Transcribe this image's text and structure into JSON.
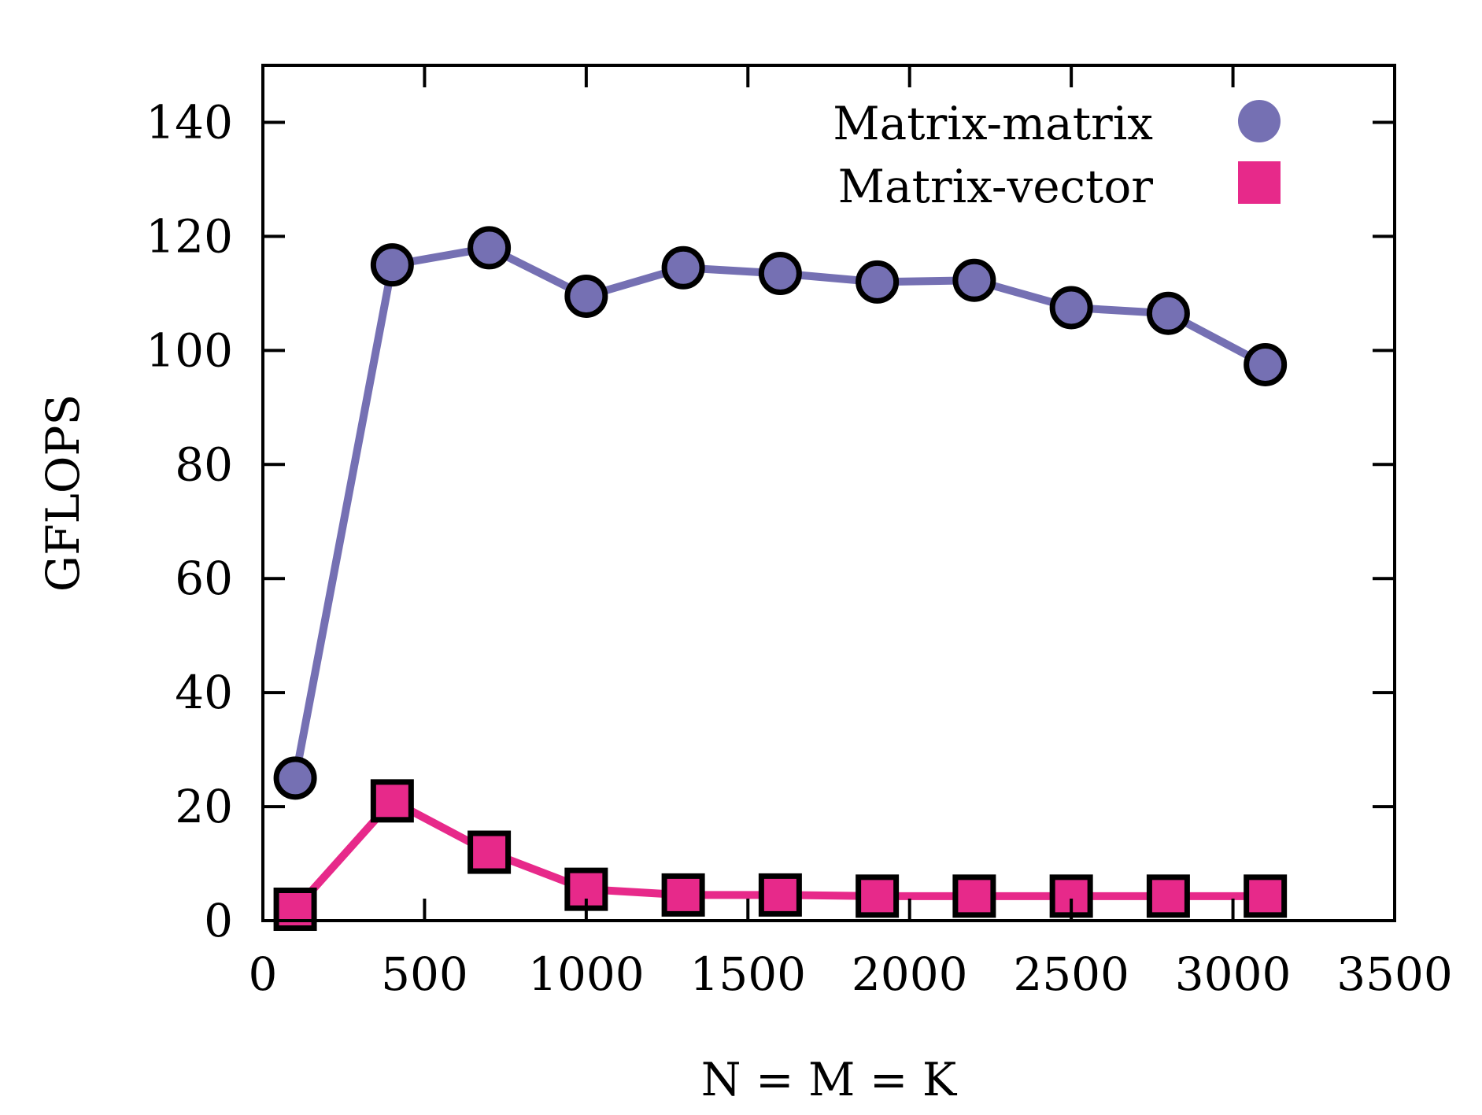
{
  "chart_data": {
    "type": "line",
    "xlabel": "N = M = K",
    "ylabel": "GFLOPS",
    "xlim": [
      0,
      3500
    ],
    "ylim": [
      0,
      150
    ],
    "xticks": [
      0,
      500,
      1000,
      1500,
      2000,
      2500,
      3000,
      3500
    ],
    "yticks": [
      0,
      20,
      40,
      60,
      80,
      100,
      120,
      140
    ],
    "xtick_labels": [
      "0",
      "500",
      "1000",
      "1500",
      "2000",
      "2500",
      "3000",
      "3500"
    ],
    "ytick_labels": [
      "0",
      "20",
      "40",
      "60",
      "80",
      "100",
      "120",
      "140"
    ],
    "grid": false,
    "legend_position": "top-right",
    "x": [
      100,
      400,
      700,
      1000,
      1300,
      1600,
      1900,
      2200,
      2500,
      2800,
      3100
    ],
    "series": [
      {
        "name": "Matrix-matrix",
        "marker": "circle",
        "color": "#7570b3",
        "values": [
          25,
          115,
          118,
          109.5,
          114.5,
          113.5,
          112,
          112.3,
          107.5,
          106.5,
          97.5
        ]
      },
      {
        "name": "Matrix-vector",
        "marker": "square",
        "color": "#e7298a",
        "values": [
          2,
          21,
          12,
          5.5,
          4.5,
          4.5,
          4.3,
          4.3,
          4.3,
          4.3,
          4.3
        ]
      }
    ]
  }
}
